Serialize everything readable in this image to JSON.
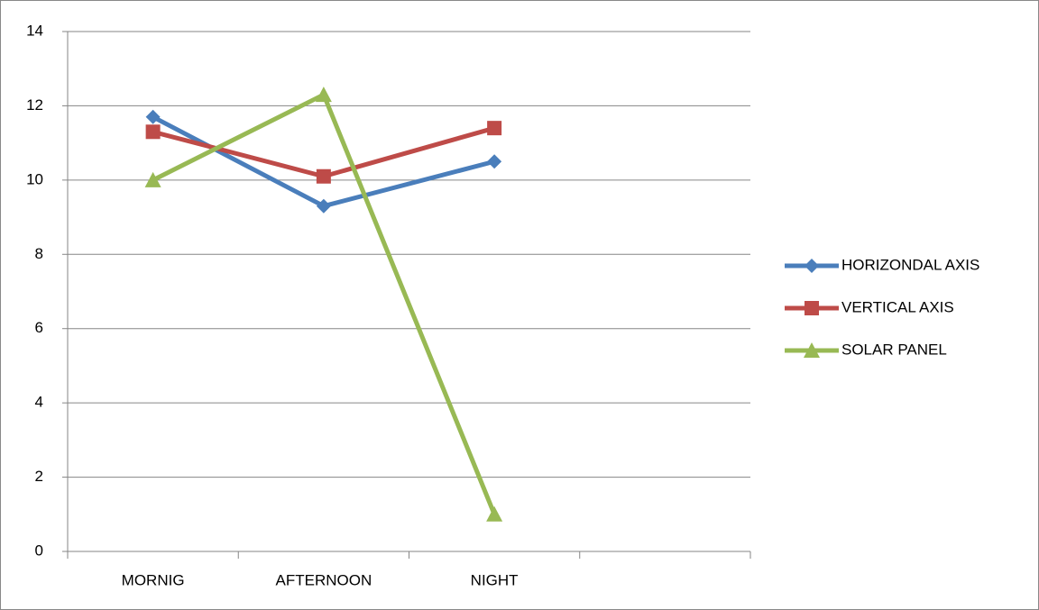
{
  "chart_data": {
    "type": "line",
    "categories": [
      "MORNIG",
      "AFTERNOON",
      "NIGHT",
      null
    ],
    "series": [
      {
        "name": "HORIZONDAL AXIS",
        "color": "#4a7ebb",
        "marker": "diamond",
        "values": [
          11.7,
          9.3,
          10.5,
          null
        ]
      },
      {
        "name": "VERTICAL AXIS",
        "color": "#be4b48",
        "marker": "square",
        "values": [
          11.3,
          10.1,
          11.4,
          null
        ]
      },
      {
        "name": "SOLAR PANEL",
        "color": "#98b954",
        "marker": "triangle",
        "values": [
          10,
          12.3,
          1.0,
          null
        ]
      }
    ],
    "ylim": [
      0,
      14
    ],
    "yticks": [
      0,
      2,
      4,
      6,
      8,
      10,
      12,
      14
    ],
    "grid": true,
    "legend": "right"
  }
}
